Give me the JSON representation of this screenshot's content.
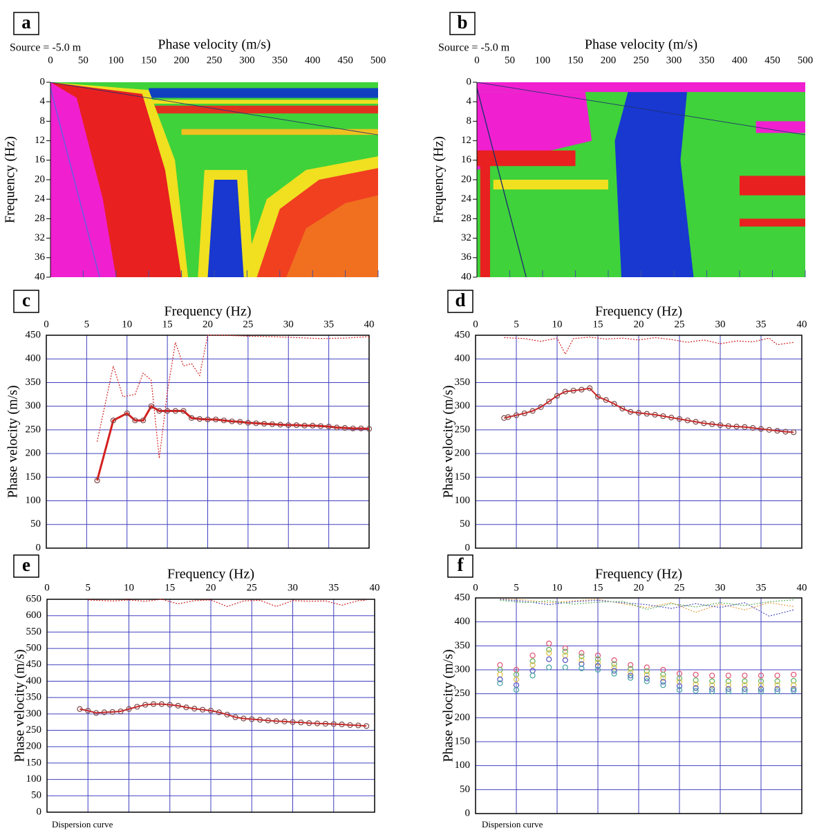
{
  "chart_data": [
    {
      "type": "image",
      "panel": "a",
      "annotation": "Source = -5.0 m",
      "x_label": "Phase velocity (m/s)",
      "y_label": "Frequency (Hz)",
      "xlim": [
        0,
        500
      ],
      "xticks": [
        0,
        50,
        100,
        150,
        200,
        250,
        300,
        350,
        400,
        450,
        500
      ],
      "ylim": [
        0,
        40
      ],
      "y_inverted": true,
      "yticks": [
        0,
        4,
        8,
        12,
        16,
        20,
        24,
        28,
        32,
        36,
        40
      ]
    },
    {
      "type": "image",
      "panel": "b",
      "annotation": "Source = -5.0 m",
      "x_label": "Phase velocity (m/s)",
      "y_label": "Frequency (Hz)",
      "xlim": [
        0,
        500
      ],
      "xticks": [
        0,
        50,
        100,
        150,
        200,
        250,
        300,
        350,
        400,
        450,
        500
      ],
      "ylim": [
        0,
        40
      ],
      "y_inverted": true,
      "yticks": [
        0,
        4,
        8,
        12,
        16,
        20,
        24,
        28,
        32,
        36,
        40
      ]
    },
    {
      "type": "line",
      "panel": "c",
      "x_label": "Frequency (Hz)",
      "y_label": "Phase velocity (m/s)",
      "xlim": [
        0,
        40
      ],
      "xticks": [
        0,
        5,
        10,
        15,
        20,
        25,
        30,
        35,
        40
      ],
      "ylim": [
        0,
        450
      ],
      "yticks": [
        0,
        50,
        100,
        150,
        200,
        250,
        300,
        350,
        400,
        450
      ],
      "grid": true,
      "series": [
        {
          "color": "#d42020",
          "style": "dotted",
          "x": [
            6.3,
            8.3,
            9.5,
            11,
            12,
            13,
            14,
            15,
            16,
            17,
            18,
            19,
            20,
            22,
            25,
            28,
            31,
            34,
            37,
            40
          ],
          "values": [
            225,
            385,
            320,
            325,
            370,
            355,
            190,
            330,
            435,
            385,
            390,
            365,
            450,
            450,
            448,
            447,
            445,
            443,
            444,
            447
          ]
        },
        {
          "color": "#d42020",
          "style": "solid",
          "width": 3,
          "markers": true,
          "marker_color": "#7a4a4a",
          "x": [
            6.3,
            8.3,
            10,
            11,
            12,
            13,
            14,
            15,
            16,
            17,
            18,
            19,
            20,
            21,
            22,
            23,
            24,
            25,
            26,
            27,
            28,
            29,
            30,
            31,
            32,
            33,
            34,
            35,
            36,
            37,
            38,
            39,
            40
          ],
          "values": [
            143,
            270,
            285,
            270,
            270,
            300,
            290,
            290,
            290,
            290,
            275,
            273,
            272,
            272,
            270,
            268,
            267,
            265,
            264,
            263,
            262,
            261,
            260,
            260,
            259,
            259,
            258,
            257,
            255,
            254,
            253,
            253,
            252
          ]
        }
      ]
    },
    {
      "type": "line",
      "panel": "d",
      "x_label": "Frequency (Hz)",
      "y_label": "Phase velocity (m/s)",
      "xlim": [
        0,
        40
      ],
      "xticks": [
        0,
        5,
        10,
        15,
        20,
        25,
        30,
        35,
        40
      ],
      "ylim": [
        0,
        450
      ],
      "yticks": [
        0,
        50,
        100,
        150,
        200,
        250,
        300,
        350,
        400,
        450
      ],
      "grid": true,
      "series": [
        {
          "color": "#d42020",
          "style": "dotted",
          "x": [
            3.5,
            6,
            8,
            10,
            11,
            12,
            14,
            16,
            18,
            20,
            22,
            24,
            26,
            28,
            30,
            32,
            34,
            36,
            37,
            39
          ],
          "values": [
            445,
            443,
            437,
            444,
            410,
            443,
            446,
            442,
            444,
            440,
            445,
            441,
            435,
            440,
            432,
            438,
            436,
            444,
            430,
            435
          ]
        },
        {
          "color": "#d42020",
          "style": "solid",
          "width": 2,
          "markers": true,
          "marker_color": "#7a4a4a",
          "x": [
            3.5,
            4,
            5,
            6,
            7,
            8,
            9,
            10,
            11,
            12,
            13,
            14,
            15,
            16,
            17,
            18,
            19,
            20,
            21,
            22,
            23,
            24,
            25,
            26,
            27,
            28,
            29,
            30,
            31,
            32,
            33,
            34,
            35,
            36,
            37,
            38,
            39
          ],
          "values": [
            275,
            277,
            281,
            285,
            290,
            298,
            310,
            322,
            331,
            333,
            335,
            338,
            320,
            313,
            305,
            295,
            288,
            286,
            284,
            282,
            279,
            276,
            273,
            270,
            267,
            264,
            262,
            260,
            258,
            257,
            256,
            254,
            252,
            250,
            248,
            246,
            245
          ]
        }
      ]
    },
    {
      "type": "line",
      "panel": "e",
      "x_label": "Frequency (Hz)",
      "y_label": "Phase velocity (m/s)",
      "note": "Dispersion curve",
      "xlim": [
        0,
        40
      ],
      "xticks": [
        0,
        5,
        10,
        15,
        20,
        25,
        30,
        35,
        40
      ],
      "ylim": [
        0,
        650
      ],
      "yticks": [
        0,
        50,
        100,
        150,
        200,
        250,
        300,
        350,
        400,
        450,
        500,
        550,
        600,
        650
      ],
      "grid": true,
      "series": [
        {
          "color": "#d42020",
          "style": "dotted",
          "x": [
            5,
            8,
            10,
            12,
            14,
            16,
            18,
            20,
            22,
            24,
            26,
            28,
            30,
            32,
            34,
            36,
            38,
            39
          ],
          "values": [
            648,
            645,
            648,
            644,
            650,
            636,
            646,
            648,
            628,
            645,
            647,
            628,
            646,
            644,
            645,
            632,
            646,
            647
          ]
        },
        {
          "color": "#d42020",
          "style": "solid",
          "width": 2,
          "markers": true,
          "marker_color": "#7a4a4a",
          "x": [
            4,
            5,
            6,
            7,
            8,
            9,
            10,
            11,
            12,
            13,
            14,
            15,
            16,
            17,
            18,
            19,
            20,
            21,
            22,
            23,
            24,
            25,
            26,
            27,
            28,
            29,
            30,
            31,
            32,
            33,
            34,
            35,
            36,
            37,
            38,
            39
          ],
          "values": [
            315,
            310,
            303,
            305,
            306,
            308,
            315,
            322,
            328,
            330,
            330,
            328,
            325,
            320,
            316,
            313,
            310,
            305,
            298,
            290,
            286,
            284,
            282,
            280,
            278,
            277,
            275,
            274,
            272,
            271,
            270,
            269,
            268,
            266,
            265,
            263
          ]
        }
      ]
    },
    {
      "type": "line",
      "panel": "f",
      "x_label": "Frequency (Hz)",
      "y_label": "Phase velocity (m/s)",
      "note": "Dispersion curve",
      "xlim": [
        0,
        40
      ],
      "xticks": [
        0,
        5,
        10,
        15,
        20,
        25,
        30,
        35,
        40
      ],
      "ylim": [
        0,
        450
      ],
      "yticks": [
        0,
        50,
        100,
        150,
        200,
        250,
        300,
        350,
        400,
        450
      ],
      "grid": true,
      "series": [
        {
          "color": "#e8a040",
          "style": "dotted",
          "x": [
            3,
            6,
            9,
            12,
            15,
            18,
            21,
            24,
            27,
            30,
            33,
            36,
            39
          ],
          "values": [
            448,
            446,
            440,
            444,
            447,
            438,
            430,
            440,
            420,
            437,
            425,
            440,
            432
          ]
        },
        {
          "color": "#5050c0",
          "style": "dotted",
          "x": [
            3,
            6,
            9,
            12,
            15,
            18,
            21,
            24,
            27,
            30,
            33,
            36,
            39
          ],
          "values": [
            447,
            443,
            436,
            442,
            445,
            440,
            436,
            428,
            438,
            430,
            440,
            412,
            425
          ]
        },
        {
          "color": "#60b060",
          "style": "dotted",
          "x": [
            3,
            6,
            9,
            12,
            15,
            18,
            21,
            24,
            27,
            30,
            33,
            36,
            39
          ],
          "values": [
            445,
            440,
            444,
            437,
            441,
            443,
            426,
            438,
            431,
            440,
            434,
            442,
            446
          ]
        },
        {
          "color": "#e05070",
          "style": "none",
          "markers": true,
          "x": [
            3,
            5,
            7,
            9,
            11,
            13,
            15,
            17,
            19,
            21,
            23,
            25,
            27,
            29,
            31,
            33,
            35,
            37,
            39
          ],
          "values": [
            310,
            300,
            330,
            355,
            345,
            335,
            330,
            320,
            310,
            305,
            300,
            292,
            290,
            288,
            288,
            288,
            288,
            288,
            290
          ]
        },
        {
          "color": "#60b060",
          "style": "none",
          "markers": true,
          "x": [
            3,
            5,
            7,
            9,
            11,
            13,
            15,
            17,
            19,
            21,
            23,
            25,
            27,
            29,
            31,
            33,
            35,
            37,
            39
          ],
          "values": [
            300,
            290,
            318,
            342,
            338,
            328,
            322,
            312,
            302,
            297,
            290,
            282,
            278,
            276,
            276,
            276,
            276,
            276,
            277
          ]
        },
        {
          "color": "#e0c040",
          "style": "none",
          "markers": true,
          "x": [
            3,
            5,
            7,
            9,
            11,
            13,
            15,
            17,
            19,
            21,
            23,
            25,
            27,
            29,
            31,
            33,
            35,
            37,
            39
          ],
          "values": [
            290,
            280,
            310,
            335,
            330,
            320,
            315,
            305,
            295,
            290,
            283,
            275,
            270,
            268,
            268,
            268,
            268,
            268,
            268
          ]
        },
        {
          "color": "#5050c0",
          "style": "none",
          "markers": true,
          "x": [
            3,
            5,
            7,
            9,
            11,
            13,
            15,
            17,
            19,
            21,
            23,
            25,
            27,
            29,
            31,
            33,
            35,
            37,
            39
          ],
          "values": [
            280,
            268,
            298,
            322,
            320,
            312,
            308,
            298,
            288,
            282,
            275,
            266,
            262,
            260,
            260,
            260,
            260,
            260,
            260
          ]
        },
        {
          "color": "#40a0a0",
          "style": "none",
          "markers": true,
          "x": [
            3,
            5,
            7,
            9,
            11,
            13,
            15,
            17,
            19,
            21,
            23,
            25,
            27,
            29,
            31,
            33,
            35,
            37,
            39
          ],
          "values": [
            272,
            258,
            288,
            305,
            305,
            303,
            300,
            292,
            283,
            276,
            268,
            258,
            256,
            255,
            255,
            255,
            255,
            255,
            256
          ]
        }
      ]
    }
  ]
}
